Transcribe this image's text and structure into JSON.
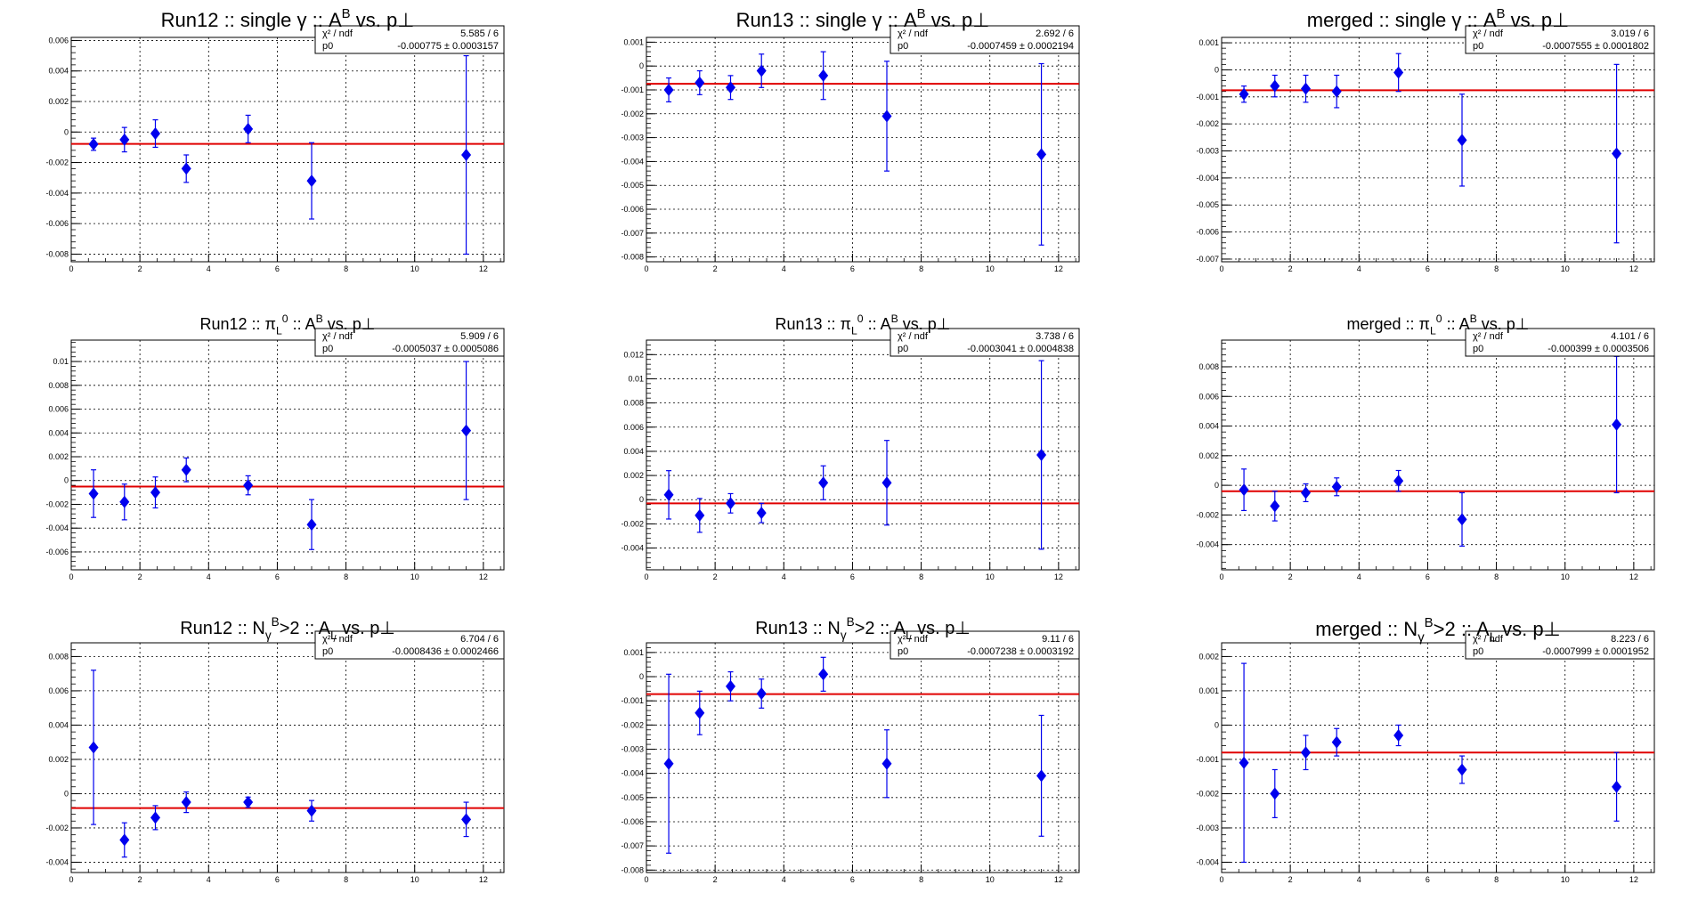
{
  "colors": {
    "marker": "#0000ee",
    "errorbar": "#0000ee",
    "fit_line": "#e00000",
    "grid": "#000000",
    "frame": "#000000"
  },
  "chart_data": [
    {
      "type": "scatter",
      "title": "Run12 :: single γ :: A^B vs. p⊥",
      "title_parts": {
        "pre": "Run12 :: single γ :: A",
        "sup": "B",
        "mid": " vs. p",
        "sub": "",
        "post": "⊥"
      },
      "x": [
        0.65,
        1.55,
        2.45,
        3.35,
        5.15,
        7.0,
        11.5
      ],
      "y": [
        -0.0008,
        -0.0005,
        -0.0001,
        -0.0024,
        0.0002,
        -0.0032,
        -0.0015
      ],
      "yerr": [
        0.0004,
        0.0008,
        0.0009,
        0.0009,
        0.0009,
        0.0025,
        0.0065
      ],
      "fit": {
        "p0": -0.000775
      },
      "stats": {
        "chi2_label": "χ² / ndf",
        "chi2_value": "5.585 / 6",
        "p0_label": "p0",
        "p0_value": "-0.000775 ± 0.0003157"
      },
      "xlim": [
        0,
        12.6
      ],
      "ylim": [
        -0.0085,
        0.0062
      ],
      "xticks": [
        "0",
        "2",
        "4",
        "6",
        "8",
        "10",
        "12"
      ],
      "yticks": [
        "-0.008",
        "-0.006",
        "-0.004",
        "-0.002",
        "0",
        "0.002",
        "0.004",
        "0.006"
      ],
      "ytick_values": [
        -0.008,
        -0.006,
        -0.004,
        -0.002,
        0,
        0.002,
        0.004,
        0.006
      ],
      "grid": true
    },
    {
      "type": "scatter",
      "title": "Run13 :: single γ :: A^B vs. p⊥",
      "title_parts": {
        "pre": "Run13 :: single γ :: A",
        "sup": "B",
        "mid": " vs. p",
        "sub": "",
        "post": "⊥"
      },
      "x": [
        0.65,
        1.55,
        2.45,
        3.35,
        5.15,
        7.0,
        11.5
      ],
      "y": [
        -0.001,
        -0.0007,
        -0.0009,
        -0.0002,
        -0.0004,
        -0.0021,
        -0.0037
      ],
      "yerr": [
        0.0005,
        0.0005,
        0.0005,
        0.0007,
        0.001,
        0.0023,
        0.0038
      ],
      "fit": {
        "p0": -0.0007459
      },
      "stats": {
        "chi2_label": "χ² / ndf",
        "chi2_value": "2.692 / 6",
        "p0_label": "p0",
        "p0_value": "-0.0007459 ± 0.0002194"
      },
      "xlim": [
        0,
        12.6
      ],
      "ylim": [
        -0.0082,
        0.0012
      ],
      "xticks": [
        "0",
        "2",
        "4",
        "6",
        "8",
        "10",
        "12"
      ],
      "yticks": [
        "-0.008",
        "-0.007",
        "-0.006",
        "-0.005",
        "-0.004",
        "-0.003",
        "-0.002",
        "-0.001",
        "0",
        "0.001"
      ],
      "ytick_values": [
        -0.008,
        -0.007,
        -0.006,
        -0.005,
        -0.004,
        -0.003,
        -0.002,
        -0.001,
        0,
        0.001
      ],
      "grid": true
    },
    {
      "type": "scatter",
      "title": "merged :: single γ :: A^B vs. p⊥",
      "title_parts": {
        "pre": "merged :: single γ :: A",
        "sup": "B",
        "mid": " vs. p",
        "sub": "",
        "post": "⊥"
      },
      "x": [
        0.65,
        1.55,
        2.45,
        3.35,
        5.15,
        7.0,
        11.5
      ],
      "y": [
        -0.0009,
        -0.0006,
        -0.0007,
        -0.0008,
        -0.0001,
        -0.0026,
        -0.0031
      ],
      "yerr": [
        0.0003,
        0.0004,
        0.0005,
        0.0006,
        0.0007,
        0.0017,
        0.0033
      ],
      "fit": {
        "p0": -0.0007555
      },
      "stats": {
        "chi2_label": "χ² / ndf",
        "chi2_value": "3.019 / 6",
        "p0_label": "p0",
        "p0_value": "-0.0007555 ± 0.0001802"
      },
      "xlim": [
        0,
        12.6
      ],
      "ylim": [
        -0.0071,
        0.0012
      ],
      "xticks": [
        "0",
        "2",
        "4",
        "6",
        "8",
        "10",
        "12"
      ],
      "yticks": [
        "-0.007",
        "-0.006",
        "-0.005",
        "-0.004",
        "-0.003",
        "-0.002",
        "-0.001",
        "0",
        "0.001"
      ],
      "ytick_values": [
        -0.007,
        -0.006,
        -0.005,
        -0.004,
        -0.003,
        -0.002,
        -0.001,
        0,
        0.001
      ],
      "grid": true
    },
    {
      "type": "scatter",
      "title": "Run12 :: π^0 :: A_L^B vs. p⊥",
      "title_parts": {
        "pre": "Run12 :: π",
        "sup": "0",
        "mid": " :: A",
        "sub": "L",
        "sup2": "B",
        "post": " vs. p⊥"
      },
      "x": [
        0.65,
        1.55,
        2.45,
        3.35,
        5.15,
        7.0,
        11.5
      ],
      "y": [
        -0.0011,
        -0.0018,
        -0.001,
        0.0009,
        -0.0004,
        -0.0037,
        0.0042
      ],
      "yerr": [
        0.002,
        0.0015,
        0.0013,
        0.001,
        0.0008,
        0.0021,
        0.0058
      ],
      "fit": {
        "p0": -0.0005037
      },
      "stats": {
        "chi2_label": "χ² / ndf",
        "chi2_value": "5.909 / 6",
        "p0_label": "p0",
        "p0_value": "-0.0005037 ± 0.0005086"
      },
      "xlim": [
        0,
        12.6
      ],
      "ylim": [
        -0.0075,
        0.0118
      ],
      "xticks": [
        "0",
        "2",
        "4",
        "6",
        "8",
        "10",
        "12"
      ],
      "yticks": [
        "-0.006",
        "-0.004",
        "-0.002",
        "0",
        "0.002",
        "0.004",
        "0.006",
        "0.008",
        "0.01"
      ],
      "ytick_values": [
        -0.006,
        -0.004,
        -0.002,
        0,
        0.002,
        0.004,
        0.006,
        0.008,
        0.01
      ],
      "grid": true
    },
    {
      "type": "scatter",
      "title": "Run13 :: π^0 :: A_L^B vs. p⊥",
      "title_parts": {
        "pre": "Run13 :: π",
        "sup": "0",
        "mid": " :: A",
        "sub": "L",
        "sup2": "B",
        "post": " vs. p⊥"
      },
      "x": [
        0.65,
        1.55,
        2.45,
        3.35,
        5.15,
        7.0,
        11.5
      ],
      "y": [
        0.0004,
        -0.0013,
        -0.0003,
        -0.0011,
        0.0014,
        0.0014,
        0.0037
      ],
      "yerr": [
        0.002,
        0.0014,
        0.0008,
        0.0008,
        0.0014,
        0.0035,
        0.0078
      ],
      "fit": {
        "p0": -0.0003041
      },
      "stats": {
        "chi2_label": "χ² / ndf",
        "chi2_value": "3.738 / 6",
        "p0_label": "p0",
        "p0_value": "-0.0003041 ± 0.0004838"
      },
      "xlim": [
        0,
        12.6
      ],
      "ylim": [
        -0.0058,
        0.0132
      ],
      "xticks": [
        "0",
        "2",
        "4",
        "6",
        "8",
        "10",
        "12"
      ],
      "yticks": [
        "-0.004",
        "-0.002",
        "0",
        "0.002",
        "0.004",
        "0.006",
        "0.008",
        "0.01",
        "0.012"
      ],
      "ytick_values": [
        -0.004,
        -0.002,
        0,
        0.002,
        0.004,
        0.006,
        0.008,
        0.01,
        0.012
      ],
      "grid": true
    },
    {
      "type": "scatter",
      "title": "merged :: π^0 :: A_L^B vs. p⊥",
      "title_parts": {
        "pre": "merged :: π",
        "sup": "0",
        "mid": " :: A",
        "sub": "L",
        "sup2": "B",
        "post": " vs. p⊥"
      },
      "x": [
        0.65,
        1.55,
        2.45,
        3.35,
        5.15,
        7.0,
        11.5
      ],
      "y": [
        -0.0003,
        -0.0014,
        -0.0005,
        -0.0001,
        0.0003,
        -0.0023,
        0.0041
      ],
      "yerr": [
        0.0014,
        0.001,
        0.0006,
        0.0006,
        0.0007,
        0.0018,
        0.0046
      ],
      "fit": {
        "p0": -0.000399
      },
      "stats": {
        "chi2_label": "χ² / ndf",
        "chi2_value": "4.101 / 6",
        "p0_label": "p0",
        "p0_value": "-0.000399 ± 0.0003506"
      },
      "xlim": [
        0,
        12.6
      ],
      "ylim": [
        -0.0057,
        0.0098
      ],
      "xticks": [
        "0",
        "2",
        "4",
        "6",
        "8",
        "10",
        "12"
      ],
      "yticks": [
        "-0.004",
        "-0.002",
        "0",
        "0.002",
        "0.004",
        "0.006",
        "0.008"
      ],
      "ytick_values": [
        -0.004,
        -0.002,
        0,
        0.002,
        0.004,
        0.006,
        0.008
      ],
      "grid": true
    },
    {
      "type": "scatter",
      "title": "Run12 :: N_γ>2 :: A_L^B vs. p⊥",
      "title_parts": {
        "pre": "Run12 :: N",
        "sub": "γ",
        "mid": ">2 :: A",
        "sub2": "L",
        "sup": "B",
        "post": " vs. p⊥"
      },
      "x": [
        0.65,
        1.55,
        2.45,
        3.35,
        5.15,
        7.0,
        11.5
      ],
      "y": [
        0.0027,
        -0.0027,
        -0.0014,
        -0.0005,
        -0.0005,
        -0.001,
        -0.0015
      ],
      "yerr": [
        0.0045,
        0.001,
        0.0007,
        0.0006,
        0.0003,
        0.0006,
        0.001
      ],
      "fit": {
        "p0": -0.0008436
      },
      "stats": {
        "chi2_label": "χ² / ndf",
        "chi2_value": "6.704 / 6",
        "p0_label": "p0",
        "p0_value": "-0.0008436 ± 0.0002466"
      },
      "xlim": [
        0,
        12.6
      ],
      "ylim": [
        -0.0046,
        0.0088
      ],
      "xticks": [
        "0",
        "2",
        "4",
        "6",
        "8",
        "10",
        "12"
      ],
      "yticks": [
        "-0.004",
        "-0.002",
        "0",
        "0.002",
        "0.004",
        "0.006",
        "0.008"
      ],
      "ytick_values": [
        -0.004,
        -0.002,
        0,
        0.002,
        0.004,
        0.006,
        0.008
      ],
      "grid": true
    },
    {
      "type": "scatter",
      "title": "Run13 :: N_γ>2 :: A_L^B vs. p⊥",
      "title_parts": {
        "pre": "Run13 :: N",
        "sub": "γ",
        "mid": ">2 :: A",
        "sub2": "L",
        "sup": "B",
        "post": " vs. p⊥"
      },
      "x": [
        0.65,
        1.55,
        2.45,
        3.35,
        5.15,
        7.0,
        11.5
      ],
      "y": [
        -0.0036,
        -0.0015,
        -0.0004,
        -0.0007,
        0.0001,
        -0.0036,
        -0.0041
      ],
      "yerr": [
        0.0037,
        0.0009,
        0.0006,
        0.0006,
        0.0007,
        0.0014,
        0.0025
      ],
      "fit": {
        "p0": -0.0007238
      },
      "stats": {
        "chi2_label": "χ² / ndf",
        "chi2_value": "9.11 / 6",
        "p0_label": "p0",
        "p0_value": "-0.0007238 ± 0.0003192"
      },
      "xlim": [
        0,
        12.6
      ],
      "ylim": [
        -0.0081,
        0.0014
      ],
      "xticks": [
        "0",
        "2",
        "4",
        "6",
        "8",
        "10",
        "12"
      ],
      "yticks": [
        "-0.008",
        "-0.007",
        "-0.006",
        "-0.005",
        "-0.004",
        "-0.003",
        "-0.002",
        "-0.001",
        "0",
        "0.001"
      ],
      "ytick_values": [
        -0.008,
        -0.007,
        -0.006,
        -0.005,
        -0.004,
        -0.003,
        -0.002,
        -0.001,
        0,
        0.001
      ],
      "grid": true
    },
    {
      "type": "scatter",
      "title": "merged :: N_γ>2 :: A_L^B vs. p⊥",
      "title_parts": {
        "pre": "merged :: N",
        "sub": "γ",
        "mid": ">2 :: A",
        "sub2": "L",
        "sup": "B",
        "post": " vs. p⊥"
      },
      "x": [
        0.65,
        1.55,
        2.45,
        3.35,
        5.15,
        7.0,
        11.5
      ],
      "y": [
        -0.0011,
        -0.002,
        -0.0008,
        -0.0005,
        -0.0003,
        -0.0013,
        -0.0018
      ],
      "yerr": [
        0.0029,
        0.0007,
        0.0005,
        0.0004,
        0.0003,
        0.0004,
        0.001
      ],
      "fit": {
        "p0": -0.0007999
      },
      "stats": {
        "chi2_label": "χ² / ndf",
        "chi2_value": "8.223 / 6",
        "p0_label": "p0",
        "p0_value": "-0.0007999 ± 0.0001952"
      },
      "xlim": [
        0,
        12.6
      ],
      "ylim": [
        -0.0043,
        0.0024
      ],
      "xticks": [
        "0",
        "2",
        "4",
        "6",
        "8",
        "10",
        "12"
      ],
      "yticks": [
        "-0.004",
        "-0.003",
        "-0.002",
        "-0.001",
        "0",
        "0.001",
        "0.002"
      ],
      "ytick_values": [
        -0.004,
        -0.003,
        -0.002,
        -0.001,
        0,
        0.001,
        0.002
      ],
      "grid": true
    }
  ]
}
